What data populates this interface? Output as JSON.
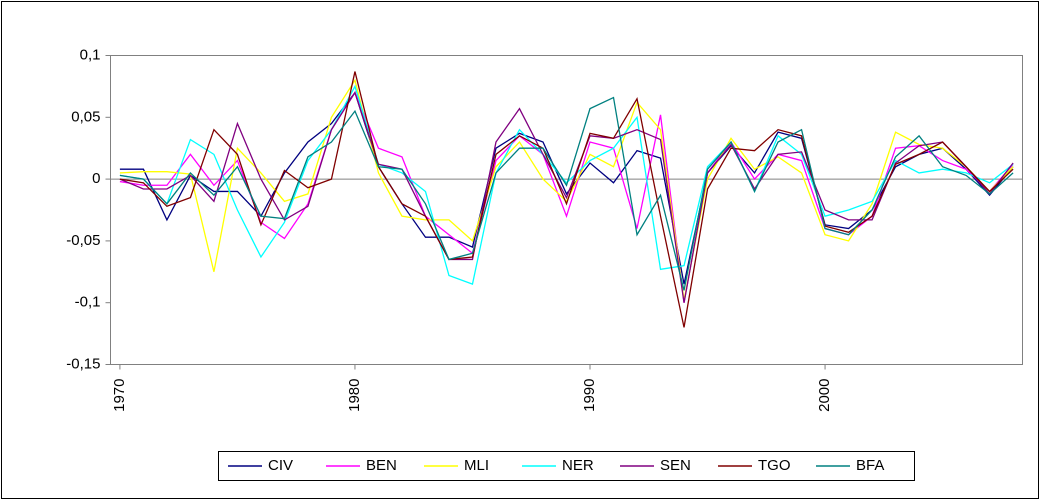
{
  "chart_data": {
    "type": "line",
    "x": [
      1970,
      1971,
      1972,
      1973,
      1974,
      1975,
      1976,
      1977,
      1978,
      1979,
      1980,
      1981,
      1982,
      1983,
      1984,
      1985,
      1986,
      1987,
      1988,
      1989,
      1990,
      1991,
      1992,
      1993,
      1994,
      1995,
      1996,
      1997,
      1998,
      1999,
      2000,
      2001,
      2002,
      2003,
      2004,
      2005,
      2006,
      2007,
      2008
    ],
    "xlim": [
      1969.6,
      2008.4
    ],
    "xticks": [
      1970,
      1980,
      1990,
      2000
    ],
    "ylim": [
      -0.15,
      0.1
    ],
    "yticks": [
      {
        "value": -0.15,
        "label": "-0,15"
      },
      {
        "value": -0.1,
        "label": "-0,1"
      },
      {
        "value": -0.05,
        "label": "-0,05"
      },
      0,
      {
        "value": 0.05,
        "label": "0,05"
      },
      {
        "value": 0.1,
        "label": "0,1"
      }
    ],
    "grid": false,
    "legend": "bottom",
    "series": [
      {
        "name": "CIV",
        "color": "#000080",
        "values": [
          0.008,
          0.008,
          -0.033,
          0.003,
          -0.01,
          -0.01,
          -0.03,
          0.005,
          0.03,
          0.045,
          0.07,
          0.01,
          -0.02,
          -0.047,
          -0.047,
          -0.055,
          0.025,
          0.037,
          0.03,
          -0.012,
          0.013,
          -0.003,
          0.023,
          0.017,
          -0.085,
          0.005,
          0.027,
          0.005,
          0.038,
          0.033,
          -0.037,
          -0.04,
          -0.025,
          0.01,
          0.02,
          0.025,
          0.008,
          -0.013,
          0.01
        ]
      },
      {
        "name": "BEN",
        "color": "#ff00ff",
        "values": [
          -0.002,
          -0.005,
          -0.005,
          0.02,
          -0.005,
          0.015,
          -0.035,
          -0.048,
          -0.02,
          0.04,
          0.07,
          0.025,
          0.018,
          -0.03,
          -0.045,
          -0.06,
          0.015,
          0.035,
          0.02,
          -0.03,
          0.03,
          0.025,
          -0.04,
          0.052,
          -0.1,
          0.005,
          0.03,
          0.0,
          0.02,
          0.015,
          -0.04,
          -0.045,
          -0.03,
          0.025,
          0.027,
          0.015,
          0.008,
          -0.01,
          0.012
        ]
      },
      {
        "name": "MLI",
        "color": "#ffff00",
        "values": [
          0.005,
          0.006,
          0.006,
          0.004,
          -0.075,
          0.025,
          0.005,
          -0.018,
          -0.012,
          0.05,
          0.08,
          0.005,
          -0.03,
          -0.033,
          -0.033,
          -0.05,
          0.01,
          0.03,
          0.0,
          -0.018,
          0.02,
          0.01,
          0.062,
          0.04,
          -0.098,
          0.0,
          0.033,
          0.008,
          0.018,
          0.005,
          -0.045,
          -0.05,
          -0.02,
          0.038,
          0.028,
          0.025,
          0.01,
          -0.01,
          0.01
        ]
      },
      {
        "name": "NER",
        "color": "#00ffff",
        "values": [
          0.003,
          0.0,
          -0.02,
          0.032,
          0.02,
          -0.025,
          -0.063,
          -0.035,
          0.015,
          0.04,
          0.075,
          0.012,
          0.005,
          -0.01,
          -0.078,
          -0.085,
          0.005,
          0.04,
          0.02,
          -0.003,
          0.015,
          0.025,
          0.05,
          -0.073,
          -0.07,
          0.01,
          0.03,
          -0.01,
          0.035,
          0.02,
          -0.03,
          -0.025,
          -0.018,
          0.015,
          0.005,
          0.008,
          0.005,
          -0.003,
          0.012
        ]
      },
      {
        "name": "SEN",
        "color": "#800080",
        "values": [
          0.0,
          -0.008,
          -0.008,
          0.003,
          -0.018,
          0.045,
          0.0,
          -0.033,
          -0.022,
          0.04,
          0.07,
          0.012,
          0.008,
          -0.03,
          -0.065,
          -0.065,
          0.03,
          0.057,
          0.02,
          -0.015,
          0.035,
          0.033,
          0.04,
          0.032,
          -0.1,
          0.005,
          0.028,
          -0.008,
          0.02,
          0.022,
          -0.025,
          -0.033,
          -0.033,
          0.013,
          0.027,
          0.03,
          0.01,
          -0.012,
          0.013
        ]
      },
      {
        "name": "TGO",
        "color": "#800000",
        "values": [
          0.0,
          -0.003,
          -0.022,
          -0.015,
          0.04,
          0.02,
          -0.037,
          0.007,
          -0.007,
          0.0,
          0.087,
          0.01,
          -0.02,
          -0.03,
          -0.065,
          -0.063,
          0.02,
          0.035,
          0.025,
          -0.02,
          0.037,
          0.033,
          0.065,
          -0.03,
          -0.12,
          -0.008,
          0.025,
          0.023,
          0.04,
          0.035,
          -0.038,
          -0.043,
          -0.03,
          0.012,
          0.02,
          0.03,
          0.01,
          -0.01,
          0.008
        ]
      },
      {
        "name": "BFA",
        "color": "#008080",
        "values": [
          0.003,
          0.0,
          -0.02,
          0.005,
          -0.013,
          0.01,
          -0.03,
          -0.032,
          0.018,
          0.03,
          0.055,
          0.01,
          0.008,
          -0.02,
          -0.065,
          -0.06,
          0.005,
          0.025,
          0.025,
          -0.005,
          0.057,
          0.066,
          -0.045,
          -0.013,
          -0.09,
          0.008,
          0.03,
          -0.01,
          0.03,
          0.04,
          -0.04,
          -0.045,
          -0.025,
          0.018,
          0.035,
          0.01,
          0.003,
          -0.012,
          0.005
        ]
      }
    ]
  }
}
